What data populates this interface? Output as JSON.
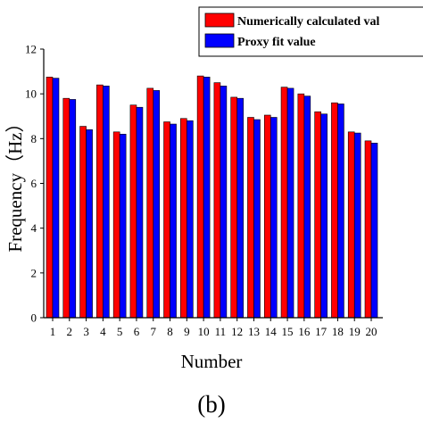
{
  "chart_data": {
    "type": "bar",
    "xlabel": "Number",
    "ylabel": "Frequency（Hz）",
    "ylim": [
      0,
      12
    ],
    "yticks": [
      0,
      2,
      4,
      6,
      8,
      10,
      12
    ],
    "categories": [
      "1",
      "2",
      "3",
      "4",
      "5",
      "6",
      "7",
      "8",
      "9",
      "10",
      "11",
      "12",
      "13",
      "14",
      "15",
      "16",
      "17",
      "18",
      "19",
      "20"
    ],
    "series": [
      {
        "name": "Numerically calculated val",
        "color": "#ff0000",
        "values": [
          10.75,
          9.8,
          8.55,
          10.4,
          8.3,
          9.5,
          10.25,
          8.75,
          8.9,
          10.8,
          10.5,
          9.85,
          8.95,
          9.05,
          10.3,
          10.0,
          9.2,
          9.6,
          8.3,
          7.9
        ]
      },
      {
        "name": "Proxy fit value",
        "color": "#0000ff",
        "values": [
          10.7,
          9.75,
          8.4,
          10.35,
          8.2,
          9.4,
          10.15,
          8.65,
          8.8,
          10.75,
          10.35,
          9.8,
          8.85,
          8.95,
          10.25,
          9.9,
          9.1,
          9.55,
          8.25,
          7.8
        ]
      }
    ],
    "legend": "top-right",
    "grid": false,
    "caption": "(b)"
  }
}
